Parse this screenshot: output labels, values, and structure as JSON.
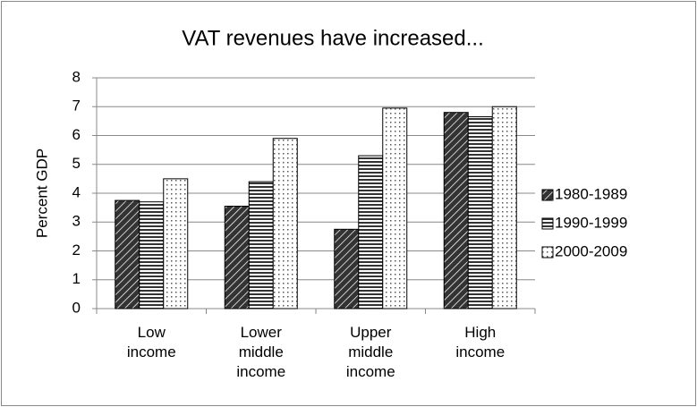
{
  "chart_data": {
    "type": "bar",
    "title": "VAT revenues have increased...",
    "y_label": "Percent GDP",
    "categories": [
      "Low income",
      "Lower middle income",
      "Upper middle income",
      "High income"
    ],
    "series": [
      {
        "name": "1980-1989",
        "color": "#333333",
        "pattern": "diagonal",
        "values": [
          3.75,
          3.55,
          2.75,
          6.8
        ]
      },
      {
        "name": "1990-1999",
        "color": "#333333",
        "pattern": "horizontal",
        "values": [
          3.7,
          4.4,
          5.3,
          6.65
        ]
      },
      {
        "name": "2000-2009",
        "color": "#555555",
        "pattern": "dots",
        "values": [
          4.5,
          5.9,
          6.95,
          7.0
        ]
      }
    ],
    "ylim": [
      0,
      8
    ],
    "yticks": [
      0,
      1,
      2,
      3,
      4,
      5,
      6,
      7,
      8
    ],
    "grid": true,
    "legend": "right"
  }
}
